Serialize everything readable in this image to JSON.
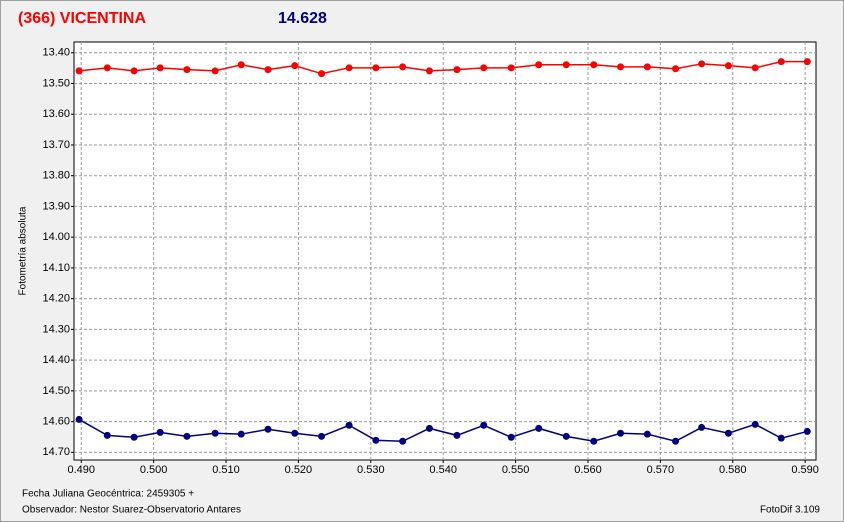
{
  "chart_data": {
    "type": "line",
    "title": "(366) VICENTINA",
    "subtitle": "14.628",
    "ylabel": "Fotometría absoluta",
    "xlabel": "Fecha Juliana Geocéntrica: 2459305 +",
    "observer": "Observador: Nestor Suarez-Observatorio Antares",
    "software": "FotoDif 3.109",
    "x": [
      0.4897,
      0.4936,
      0.4973,
      0.5009,
      0.5046,
      0.5085,
      0.5121,
      0.5158,
      0.5195,
      0.5232,
      0.527,
      0.5307,
      0.5344,
      0.5381,
      0.5419,
      0.5456,
      0.5494,
      0.5532,
      0.557,
      0.5608,
      0.5645,
      0.5682,
      0.5721,
      0.5757,
      0.5794,
      0.5831,
      0.5867,
      0.5903
    ],
    "series": [
      {
        "color": "#ff0000",
        "values": [
          13.459,
          13.449,
          13.459,
          13.449,
          13.455,
          13.459,
          13.439,
          13.455,
          13.442,
          13.468,
          13.449,
          13.449,
          13.446,
          13.459,
          13.455,
          13.449,
          13.449,
          13.439,
          13.439,
          13.439,
          13.446,
          13.446,
          13.452,
          13.436,
          13.442,
          13.449,
          13.429,
          13.429
        ]
      },
      {
        "color": "#000080",
        "values": [
          14.593,
          14.645,
          14.651,
          14.635,
          14.648,
          14.638,
          14.641,
          14.625,
          14.638,
          14.648,
          14.612,
          14.661,
          14.664,
          14.622,
          14.645,
          14.612,
          14.651,
          14.622,
          14.648,
          14.664,
          14.638,
          14.641,
          14.664,
          14.619,
          14.638,
          14.609,
          14.654,
          14.632
        ]
      }
    ],
    "xlim": [
      0.489,
      0.5915
    ],
    "ylim": [
      13.365,
      14.725
    ],
    "y_inverted": true,
    "grid": true,
    "xticks": [
      {
        "value": 0.49,
        "label": "0.490"
      },
      {
        "value": 0.5,
        "label": "0.500"
      },
      {
        "value": 0.51,
        "label": "0.510"
      },
      {
        "value": 0.52,
        "label": "0.520"
      },
      {
        "value": 0.53,
        "label": "0.530"
      },
      {
        "value": 0.54,
        "label": "0.540"
      },
      {
        "value": 0.55,
        "label": "0.550"
      },
      {
        "value": 0.56,
        "label": "0.560"
      },
      {
        "value": 0.57,
        "label": "0.570"
      },
      {
        "value": 0.58,
        "label": "0.580"
      },
      {
        "value": 0.59,
        "label": "0.590"
      }
    ],
    "yticks": [
      {
        "value": 13.4,
        "label": "13.40"
      },
      {
        "value": 13.5,
        "label": "13.50"
      },
      {
        "value": 13.6,
        "label": "13.60"
      },
      {
        "value": 13.7,
        "label": "13.70"
      },
      {
        "value": 13.8,
        "label": "13.80"
      },
      {
        "value": 13.9,
        "label": "13.90"
      },
      {
        "value": 14.0,
        "label": "14.00"
      },
      {
        "value": 14.1,
        "label": "14.10"
      },
      {
        "value": 14.2,
        "label": "14.20"
      },
      {
        "value": 14.3,
        "label": "14.30"
      },
      {
        "value": 14.4,
        "label": "14.40"
      },
      {
        "value": 14.5,
        "label": "14.50"
      },
      {
        "value": 14.6,
        "label": "14.60"
      },
      {
        "value": 14.7,
        "label": "14.70"
      }
    ]
  }
}
